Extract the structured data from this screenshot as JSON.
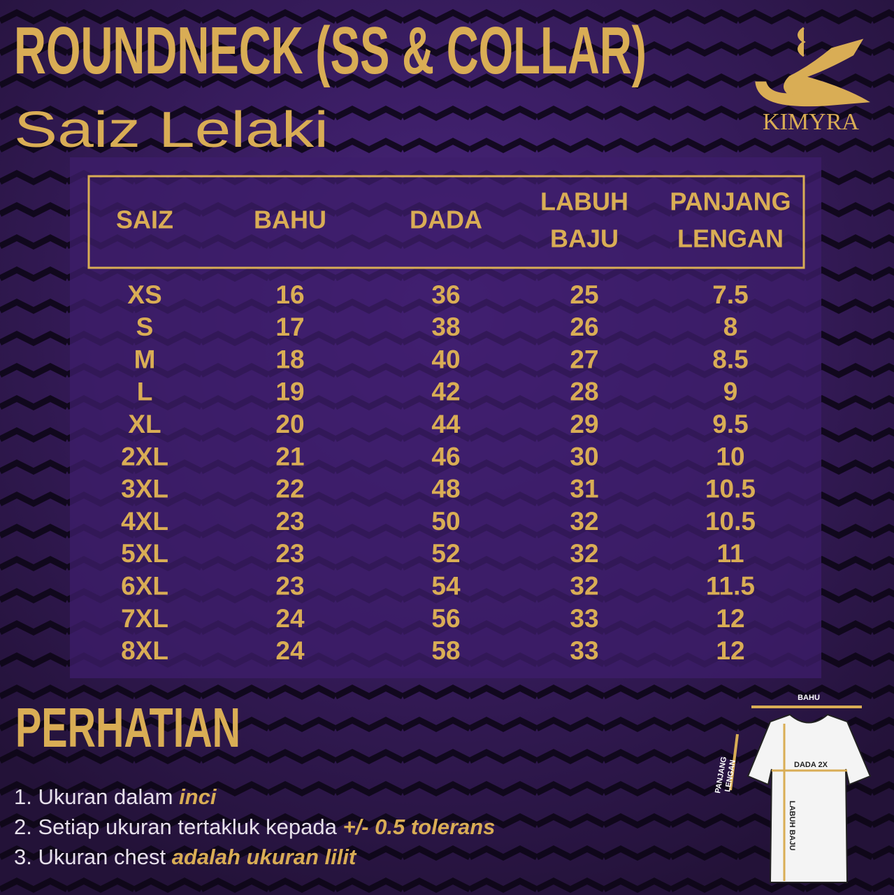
{
  "title": "ROUNDNECK (SS & COLLAR)",
  "subtitle": "Saiz Lelaki",
  "logo": {
    "name": "KIMYRA"
  },
  "table": {
    "headers": [
      [
        "SAIZ"
      ],
      [
        "BAHU"
      ],
      [
        "DADA"
      ],
      [
        "LABUH",
        "BAJU"
      ],
      [
        "PANJANG",
        "LENGAN"
      ]
    ],
    "rows": [
      [
        "XS",
        "16",
        "36",
        "25",
        "7.5"
      ],
      [
        "S",
        "17",
        "38",
        "26",
        "8"
      ],
      [
        "M",
        "18",
        "40",
        "27",
        "8.5"
      ],
      [
        "L",
        "19",
        "42",
        "28",
        "9"
      ],
      [
        "XL",
        "20",
        "44",
        "29",
        "9.5"
      ],
      [
        "2XL",
        "21",
        "46",
        "30",
        "10"
      ],
      [
        "3XL",
        "22",
        "48",
        "31",
        "10.5"
      ],
      [
        "4XL",
        "23",
        "50",
        "32",
        "10.5"
      ],
      [
        "5XL",
        "23",
        "52",
        "32",
        "11"
      ],
      [
        "6XL",
        "23",
        "54",
        "32",
        "11.5"
      ],
      [
        "7XL",
        "24",
        "56",
        "33",
        "12"
      ],
      [
        "8XL",
        "24",
        "58",
        "33",
        "12"
      ]
    ]
  },
  "notice": {
    "title": "PERHATIAN",
    "items": [
      {
        "text": "1. Ukuran dalam ",
        "emphasis": "inci"
      },
      {
        "text": "2. Setiap ukuran tertakluk kepada ",
        "emphasis": "+/- 0.5 tolerans"
      },
      {
        "text": "3. Ukuran chest ",
        "emphasis": "adalah ukuran lilit"
      }
    ]
  },
  "diagram": {
    "shoulder": "BAHU",
    "sleeve": [
      "PANJANG",
      "LENGAN"
    ],
    "chest": "DADA 2X",
    "length": "LABUH BAJU"
  }
}
